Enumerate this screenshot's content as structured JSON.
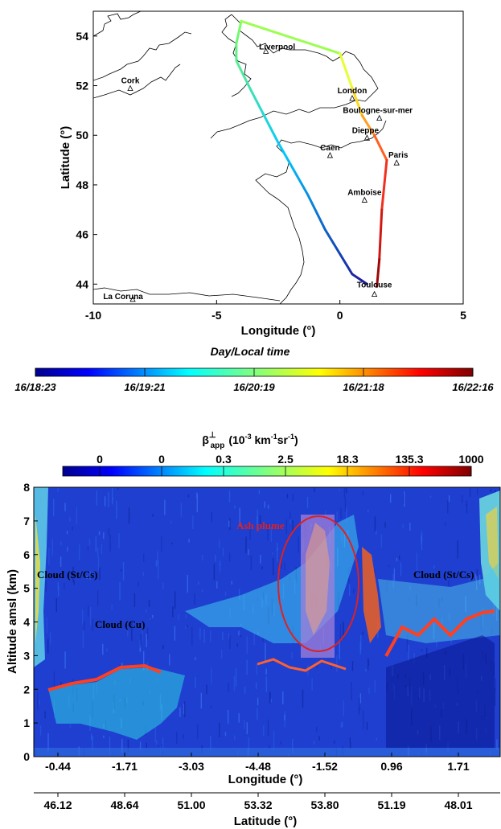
{
  "map": {
    "xlabel": "Longitude (°)",
    "ylabel": "Latitude (°)",
    "x_ticks": [
      "-10",
      "-5",
      "0",
      "5"
    ],
    "y_ticks": [
      "44",
      "46",
      "48",
      "50",
      "52",
      "54"
    ],
    "cities": [
      {
        "name": "Liverpool",
        "lon": -3.0,
        "lat": 53.4
      },
      {
        "name": "Cork",
        "lon": -8.5,
        "lat": 51.9
      },
      {
        "name": "London",
        "lon": 0.5,
        "lat": 51.5
      },
      {
        "name": "Boulogne-sur-mer",
        "lon": 1.6,
        "lat": 50.7
      },
      {
        "name": "Dieppe",
        "lon": 1.1,
        "lat": 49.9
      },
      {
        "name": "Caen",
        "lon": -0.4,
        "lat": 49.2
      },
      {
        "name": "Paris",
        "lon": 2.3,
        "lat": 48.9
      },
      {
        "name": "Amboise",
        "lon": 1.0,
        "lat": 47.4
      },
      {
        "name": "Toulouse",
        "lon": 1.4,
        "lat": 43.6
      },
      {
        "name": "La Coruna",
        "lon": -8.4,
        "lat": 43.4
      }
    ]
  },
  "colorbar_time": {
    "title": "Day/Local time",
    "ticks": [
      "16/18:23",
      "16/19:21",
      "16/20:19",
      "16/21:18",
      "16/22:16"
    ]
  },
  "colorbar_beta": {
    "title_base": "β",
    "title_sup": "⊥",
    "title_sub": "app",
    "title_units": "(10",
    "title_exp1": "-3",
    "title_mid": " km",
    "title_exp2": "-1",
    "title_sr": "sr",
    "title_exp3": "-1",
    "title_end": ")",
    "ticks": [
      "0",
      "0",
      "0.3",
      "2.5",
      "18.3",
      "135.3",
      "1000"
    ]
  },
  "profile": {
    "ylabel": "Altitude amsl (km)",
    "y_ticks": [
      "0",
      "1",
      "2",
      "3",
      "4",
      "5",
      "6",
      "7",
      "8"
    ],
    "lon_label": "Longitude (°)",
    "lon_ticks": [
      "-0.44",
      "-1.71",
      "-3.03",
      "-4.48",
      "-1.52",
      "0.96",
      "1.71"
    ],
    "lat_label": "Latitude (°)",
    "lat_ticks": [
      "46.12",
      "48.64",
      "51.00",
      "53.32",
      "53.80",
      "51.19",
      "48.01"
    ],
    "annotations": {
      "ash": "Ash plume",
      "cloud_left": "Cloud (St/Cs)",
      "cloud_right": "Cloud (St/Cs)",
      "cloud_cu": "Cloud (Cu)"
    }
  },
  "chart_data": [
    {
      "type": "line",
      "title": "",
      "xlabel": "Longitude (°)",
      "ylabel": "Latitude (°)",
      "xlim": [
        -10,
        5
      ],
      "ylim": [
        43.2,
        55
      ],
      "series": [
        {
          "x": [
            1.1,
            0.5,
            -0.6,
            -1.3,
            -2.5,
            -3.6,
            -4.2,
            -4.2,
            -4.0,
            0,
            0.5,
            0.9,
            1.4,
            1.9,
            1.7,
            1.6,
            1.5
          ],
          "y": [
            44.0,
            44.4,
            46.2,
            47.6,
            49.7,
            51.8,
            53.0,
            53.7,
            54.6,
            53.3,
            51.9,
            50.8,
            50.0,
            49.0,
            47.0,
            45.0,
            43.9
          ]
        }
      ]
    },
    {
      "type": "heatmap",
      "title": "",
      "xlabel": "Longitude (°)",
      "ylabel": "Altitude amsl (km)",
      "ylim": [
        0,
        8
      ],
      "colorbar_ticks": [
        "0",
        "0",
        "0.3",
        "2.5",
        "18.3",
        "135.3",
        "1000"
      ],
      "x_ticks_longitude": [
        "-0.44",
        "-1.71",
        "-3.03",
        "-4.48",
        "-1.52",
        "0.96",
        "1.71"
      ],
      "x_ticks_latitude": [
        "46.12",
        "48.64",
        "51.00",
        "53.32",
        "53.80",
        "51.19",
        "48.01"
      ]
    }
  ]
}
